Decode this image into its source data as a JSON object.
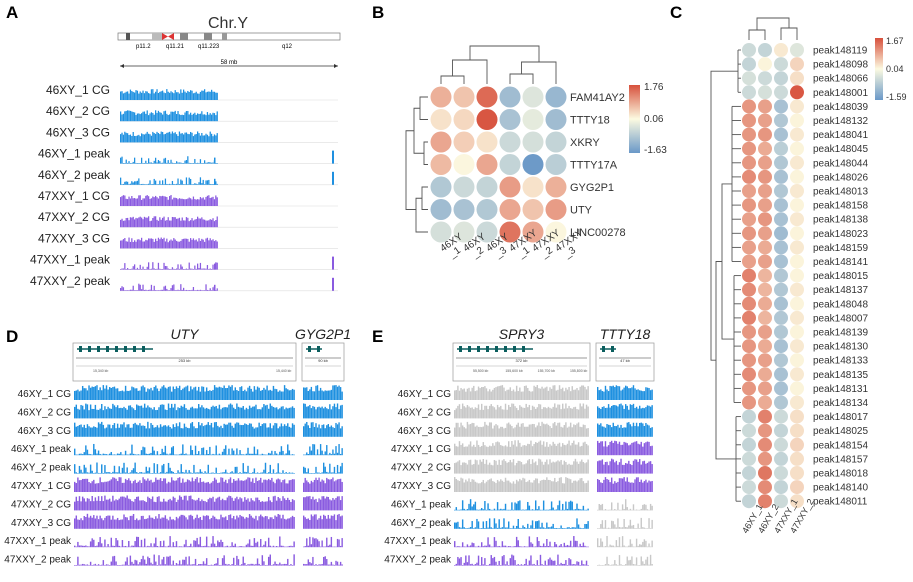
{
  "panels": {
    "A": "A",
    "B": "B",
    "C": "C",
    "D": "D",
    "E": "E"
  },
  "panel_a": {
    "chrom_title": "Chr.Y",
    "bands": [
      "p11.2",
      "q11.21",
      "q11.223",
      "q12"
    ],
    "scale_label": "58 mb",
    "tracks": [
      {
        "label": "46XY_1 CG",
        "kind": "cg",
        "group": "xy"
      },
      {
        "label": "46XY_2 CG",
        "kind": "cg",
        "group": "xy"
      },
      {
        "label": "46XY_3 CG",
        "kind": "cg",
        "group": "xy"
      },
      {
        "label": "46XY_1 peak",
        "kind": "peak",
        "group": "xy"
      },
      {
        "label": "46XY_2 peak",
        "kind": "peak",
        "group": "xy"
      },
      {
        "label": "47XXY_1 CG",
        "kind": "cg",
        "group": "xxy"
      },
      {
        "label": "47XXY_2 CG",
        "kind": "cg",
        "group": "xxy"
      },
      {
        "label": "47XXY_3 CG",
        "kind": "cg",
        "group": "xxy"
      },
      {
        "label": "47XXY_1 peak",
        "kind": "peak",
        "group": "xxy"
      },
      {
        "label": "47XXY_2 peak",
        "kind": "peak",
        "group": "xxy"
      }
    ]
  },
  "panel_b": {
    "rows": [
      "FAM41AY2",
      "TTTY18",
      "XKRY",
      "TTTY17A",
      "GYG2P1",
      "UTY",
      "LINC00278"
    ],
    "cols": [
      "46XY\n_1",
      "46XY\n_2",
      "46XY\n_3",
      "47XXY\n_1",
      "47XXY\n_2",
      "47XXY\n_3"
    ],
    "colorbar_ticks": [
      "1.76",
      "0.06",
      "-1.63"
    ],
    "values": [
      [
        0.8,
        0.6,
        1.5,
        -1.0,
        -0.3,
        -1.1
      ],
      [
        0.3,
        0.4,
        1.7,
        -0.9,
        -0.2,
        -1.0
      ],
      [
        0.9,
        0.5,
        0.3,
        -0.5,
        -0.4,
        -0.6
      ],
      [
        0.7,
        0.1,
        0.9,
        -0.6,
        -1.6,
        -0.7
      ],
      [
        -0.8,
        -0.5,
        -0.6,
        1.0,
        0.3,
        0.8
      ],
      [
        -1.0,
        -0.9,
        -0.8,
        0.9,
        0.6,
        1.0
      ],
      [
        -0.4,
        -0.3,
        -0.5,
        1.4,
        0.9,
        0.1
      ]
    ]
  },
  "panel_c": {
    "rows": [
      "peak148119",
      "peak148098",
      "peak148066",
      "peak148001",
      "peak148039",
      "peak148132",
      "peak148041",
      "peak148045",
      "peak148044",
      "peak148026",
      "peak148013",
      "peak148158",
      "peak148138",
      "peak148023",
      "peak148159",
      "peak148141",
      "peak148015",
      "peak148137",
      "peak148048",
      "peak148007",
      "peak148139",
      "peak148130",
      "peak148133",
      "peak148135",
      "peak148131",
      "peak148134",
      "peak148017",
      "peak148025",
      "peak148154",
      "peak148157",
      "peak148018",
      "peak148140",
      "peak148011"
    ],
    "cols": [
      "46XY_1",
      "46XY_2",
      "47XXY_1",
      "47XXY_2"
    ],
    "colorbar_ticks": [
      "1.67",
      "0.04",
      "-1.59"
    ],
    "values": [
      [
        -0.5,
        -0.6,
        0.2,
        -0.3
      ],
      [
        -0.6,
        0.1,
        -0.5,
        0.4
      ],
      [
        -0.4,
        -0.5,
        -0.6,
        0.3
      ],
      [
        -0.5,
        -0.4,
        -0.5,
        1.6
      ],
      [
        1.0,
        0.9,
        -0.9,
        0.2
      ],
      [
        1.0,
        0.9,
        -0.8,
        0.1
      ],
      [
        1.0,
        1.0,
        -0.9,
        0.2
      ],
      [
        1.0,
        0.8,
        -0.7,
        0.1
      ],
      [
        1.0,
        0.9,
        -0.8,
        0.2
      ],
      [
        1.1,
        1.0,
        -0.9,
        0.1
      ],
      [
        0.9,
        0.9,
        -0.8,
        0.2
      ],
      [
        1.0,
        0.9,
        -0.9,
        0.1
      ],
      [
        0.9,
        1.0,
        -0.9,
        0.2
      ],
      [
        1.0,
        0.9,
        -1.0,
        0.1
      ],
      [
        0.9,
        0.8,
        -0.9,
        0.2
      ],
      [
        0.9,
        0.9,
        -0.9,
        0.1
      ],
      [
        1.2,
        0.7,
        -0.8,
        0.1
      ],
      [
        1.1,
        0.7,
        -0.8,
        0.2
      ],
      [
        1.1,
        0.8,
        -0.9,
        0.1
      ],
      [
        1.2,
        0.7,
        -0.8,
        0.2
      ],
      [
        1.0,
        0.9,
        -0.8,
        0.1
      ],
      [
        1.0,
        0.8,
        -0.9,
        0.2
      ],
      [
        1.0,
        0.9,
        -0.8,
        0.1
      ],
      [
        1.1,
        0.8,
        -0.9,
        0.2
      ],
      [
        1.0,
        0.9,
        -0.9,
        0.1
      ],
      [
        1.0,
        0.8,
        -0.8,
        0.2
      ],
      [
        -0.6,
        1.2,
        -0.5,
        0.3
      ],
      [
        -0.5,
        1.0,
        -0.6,
        0.3
      ],
      [
        -0.6,
        1.1,
        -0.5,
        0.4
      ],
      [
        -0.5,
        1.0,
        -0.6,
        0.3
      ],
      [
        -0.6,
        1.3,
        -0.5,
        0.3
      ],
      [
        -0.5,
        1.1,
        -0.6,
        0.4
      ],
      [
        -0.6,
        1.2,
        -0.5,
        0.3
      ]
    ]
  },
  "panel_d": {
    "gene_left": "UTY",
    "gene_right": "GYG2P1",
    "scale_left": "253 kb",
    "scale_right": "90 kb",
    "ticks": [
      "15,340 kb",
      "15,440 kb"
    ],
    "tracks": [
      "46XY_1 CG",
      "46XY_2 CG",
      "46XY_3 CG",
      "46XY_1 peak",
      "46XY_2 peak",
      "47XXY_1 CG",
      "47XXY_2 CG",
      "47XXY_3 CG",
      "47XXY_1 peak",
      "47XXY_2 peak"
    ]
  },
  "panel_e": {
    "gene_left": "SPRY3",
    "gene_right": "TTTY18",
    "scale_left": "372 kb",
    "scale_right": "47 kb",
    "ticks": [
      "55,500 kb",
      "155,600 kb",
      "155,700 kb",
      "155,800 kb"
    ],
    "tracks": [
      "46XY_1 CG",
      "46XY_2 CG",
      "46XY_3 CG",
      "47XXY_1 CG",
      "47XXY_2 CG",
      "47XXY_3 CG",
      "46XY_1 peak",
      "46XY_2 peak",
      "47XXY_1 peak",
      "47XXY_2 peak"
    ]
  },
  "colors": {
    "blue": "#1e90e0",
    "purple": "#8a5be0",
    "gray": "#c8c8c8",
    "red": "#d7503c",
    "cool": "#6a98c8"
  }
}
